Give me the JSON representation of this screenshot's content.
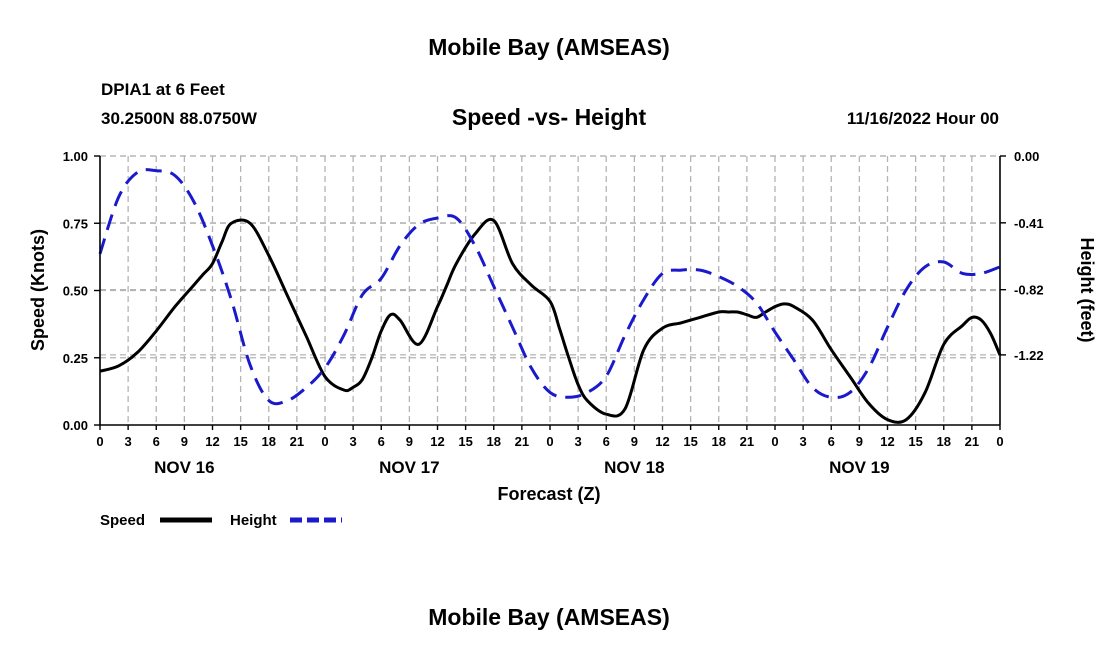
{
  "header": {
    "title": "Mobile Bay (AMSEAS)",
    "station": "DPIA1 at 6 Feet",
    "coords": "30.2500N  88.0750W",
    "chart_title": "Speed -vs- Height",
    "datetime": "11/16/2022 Hour 00"
  },
  "footer_title": "Mobile Bay (AMSEAS)",
  "legend": {
    "speed_label": "Speed",
    "height_label": "Height"
  },
  "colors": {
    "speed": "#000000",
    "height": "#1a1acc"
  },
  "chart_data": {
    "type": "line",
    "title": "Speed -vs- Height",
    "xlabel": "Forecast (Z)",
    "ylabel": "Speed (Knots)",
    "y2label": "Height (feet)",
    "xlim": [
      0,
      96
    ],
    "ylim": [
      0,
      1
    ],
    "y2lim": [
      -1.65,
      0
    ],
    "x_ticks": [
      0,
      3,
      6,
      9,
      12,
      15,
      18,
      21,
      24,
      27,
      30,
      33,
      36,
      39,
      42,
      45,
      48,
      51,
      54,
      57,
      60,
      63,
      66,
      69,
      72,
      75,
      78,
      81,
      84,
      87,
      90,
      93,
      96
    ],
    "x_tick_labels": [
      "0",
      "3",
      "6",
      "9",
      "12",
      "15",
      "18",
      "21",
      "0",
      "3",
      "6",
      "9",
      "12",
      "15",
      "18",
      "21",
      "0",
      "3",
      "6",
      "9",
      "12",
      "15",
      "18",
      "21",
      "0",
      "3",
      "6",
      "9",
      "12",
      "15",
      "18",
      "21",
      "0"
    ],
    "day_labels": [
      {
        "label": "NOV 16",
        "hour": 9
      },
      {
        "label": "NOV 17",
        "hour": 33
      },
      {
        "label": "NOV 18",
        "hour": 57
      },
      {
        "label": "NOV 19",
        "hour": 81
      }
    ],
    "y_ticks": [
      0,
      0.25,
      0.5,
      0.75,
      1.0
    ],
    "y_tick_labels": [
      "0.00",
      "0.25",
      "0.50",
      "0.75",
      "1.00"
    ],
    "y2_ticks": [
      0,
      -0.41,
      -0.82,
      -1.22
    ],
    "y2_tick_labels": [
      "0.00",
      "-0.41",
      "-0.82",
      "-1.22"
    ],
    "grid": true,
    "series": [
      {
        "name": "Speed",
        "axis": "left",
        "style": "solid",
        "x": [
          0,
          2,
          4,
          6,
          8,
          10,
          11,
          12,
          13,
          14,
          16,
          18,
          20,
          22,
          24,
          26,
          27,
          28,
          29,
          30,
          31,
          32,
          34,
          36,
          37,
          38,
          40,
          42,
          44,
          46,
          48,
          49,
          50,
          51,
          52,
          54,
          56,
          58,
          60,
          62,
          64,
          66,
          67,
          68,
          69,
          70,
          71,
          72,
          73,
          74,
          76,
          78,
          80,
          82,
          84,
          86,
          88,
          90,
          92,
          93,
          94,
          95,
          96
        ],
        "values": [
          0.2,
          0.22,
          0.27,
          0.35,
          0.44,
          0.52,
          0.56,
          0.6,
          0.68,
          0.75,
          0.75,
          0.63,
          0.48,
          0.33,
          0.18,
          0.13,
          0.14,
          0.17,
          0.25,
          0.35,
          0.41,
          0.39,
          0.3,
          0.44,
          0.52,
          0.6,
          0.71,
          0.76,
          0.6,
          0.52,
          0.46,
          0.36,
          0.25,
          0.15,
          0.09,
          0.04,
          0.06,
          0.28,
          0.36,
          0.38,
          0.4,
          0.42,
          0.42,
          0.42,
          0.41,
          0.4,
          0.42,
          0.44,
          0.45,
          0.44,
          0.39,
          0.28,
          0.18,
          0.08,
          0.02,
          0.02,
          0.12,
          0.3,
          0.37,
          0.4,
          0.39,
          0.34,
          0.26
        ]
      },
      {
        "name": "Height",
        "axis": "right",
        "style": "dashed",
        "x": [
          0,
          2,
          4,
          6,
          8,
          10,
          12,
          14,
          16,
          18,
          20,
          22,
          24,
          26,
          28,
          30,
          32,
          34,
          36,
          38,
          40,
          42,
          44,
          46,
          48,
          50,
          52,
          54,
          56,
          58,
          60,
          62,
          64,
          66,
          68,
          70,
          72,
          74,
          76,
          78,
          80,
          82,
          84,
          86,
          88,
          90,
          92,
          94,
          96
        ],
        "values": [
          -0.6,
          -0.25,
          -0.1,
          -0.09,
          -0.12,
          -0.28,
          -0.55,
          -0.88,
          -1.28,
          -1.5,
          -1.5,
          -1.42,
          -1.3,
          -1.1,
          -0.85,
          -0.75,
          -0.55,
          -0.42,
          -0.38,
          -0.38,
          -0.55,
          -0.8,
          -1.05,
          -1.3,
          -1.45,
          -1.48,
          -1.45,
          -1.35,
          -1.1,
          -0.88,
          -0.72,
          -0.7,
          -0.7,
          -0.74,
          -0.8,
          -0.9,
          -1.08,
          -1.25,
          -1.42,
          -1.48,
          -1.45,
          -1.3,
          -1.05,
          -0.82,
          -0.68,
          -0.65,
          -0.72,
          -0.72,
          -0.68
        ]
      }
    ]
  }
}
